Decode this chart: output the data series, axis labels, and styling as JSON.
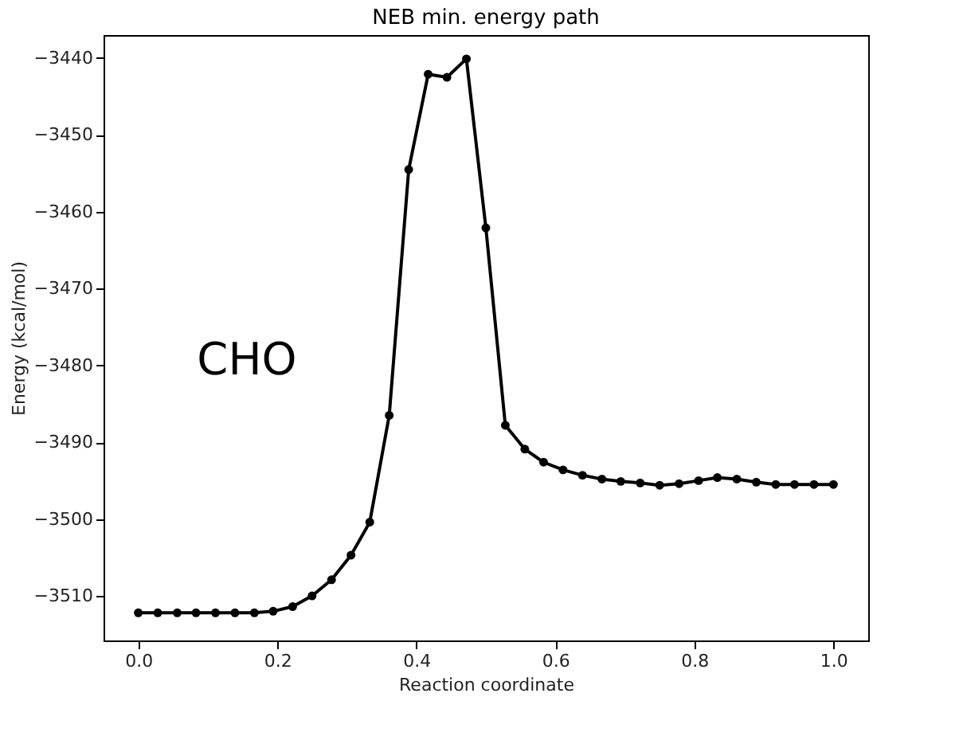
{
  "chart_data": {
    "type": "line",
    "title": "NEB min. energy path",
    "xlabel": "Reaction coordinate",
    "ylabel": "Energy (kcal/mol)",
    "x": [
      0.0,
      0.028,
      0.056,
      0.083,
      0.111,
      0.139,
      0.167,
      0.194,
      0.222,
      0.25,
      0.278,
      0.306,
      0.333,
      0.361,
      0.389,
      0.417,
      0.444,
      0.472,
      0.5,
      0.528,
      0.556,
      0.583,
      0.611,
      0.639,
      0.667,
      0.694,
      0.722,
      0.75,
      0.778,
      0.806,
      0.833,
      0.861,
      0.889,
      0.917,
      0.944,
      0.972,
      1.0
    ],
    "series": [
      {
        "color": "#000000",
        "values": [
          -3512.2,
          -3512.2,
          -3512.2,
          -3512.2,
          -3512.2,
          -3512.2,
          -3512.2,
          -3512.0,
          -3511.4,
          -3510.0,
          -3507.9,
          -3504.7,
          -3500.4,
          -3486.5,
          -3454.5,
          -3442.1,
          -3442.5,
          -3440.1,
          -3462.1,
          -3487.8,
          -3490.9,
          -3492.6,
          -3493.6,
          -3494.3,
          -3494.8,
          -3495.1,
          -3495.3,
          -3495.6,
          -3495.4,
          -3495.0,
          -3494.6,
          -3494.8,
          -3495.2,
          -3495.5,
          -3495.5,
          -3495.5,
          -3495.5
        ]
      }
    ],
    "xlim": [
      -0.05,
      1.05
    ],
    "xticks": [
      {
        "value": 0,
        "label": "0.0"
      },
      0.2,
      0.4,
      0.6,
      0.8,
      {
        "value": 1,
        "label": "1.0"
      }
    ],
    "ylim": [
      -3515.8,
      -3437.0
    ],
    "yticks": [
      -3510,
      -3500,
      -3490,
      -3480,
      -3470,
      -3460,
      -3450,
      -3440
    ],
    "marker": "circle",
    "grid": false,
    "annotations": [
      "CHO"
    ]
  }
}
